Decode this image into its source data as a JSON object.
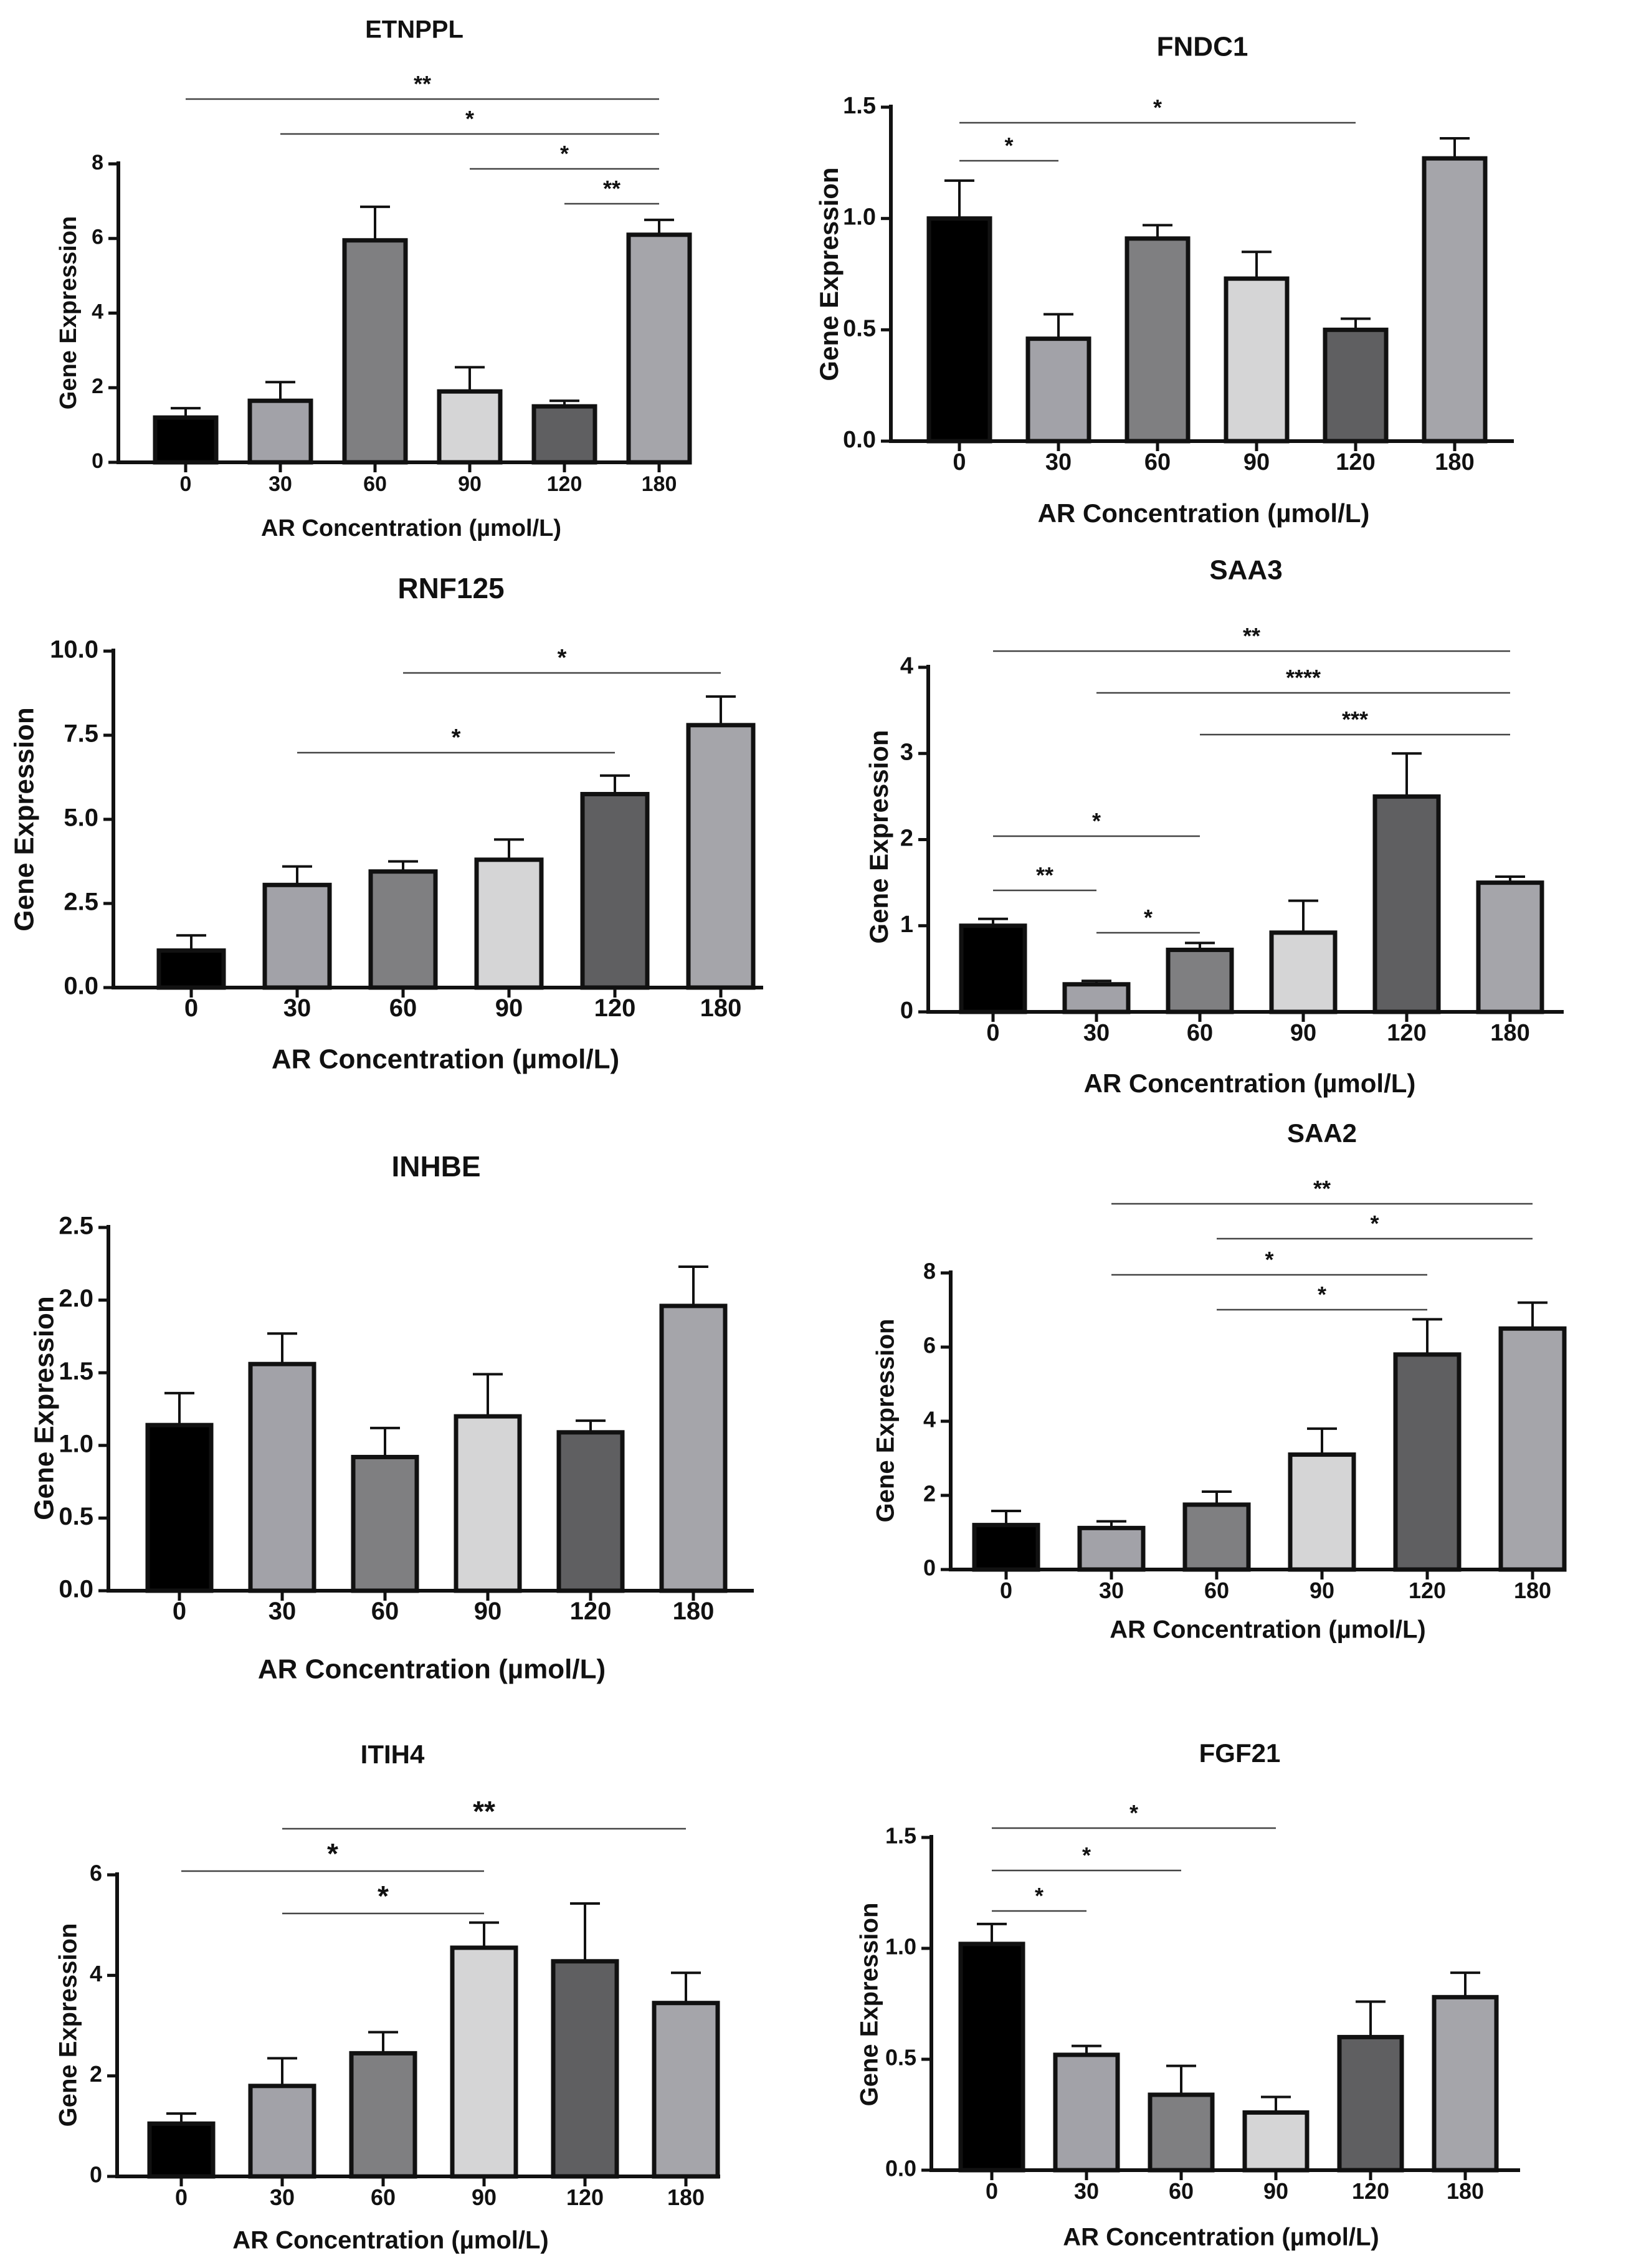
{
  "chart_data": [
    {
      "type": "bar",
      "title": "ETNPPL",
      "xlabel": "AR Concentration (µmol/L)",
      "ylabel": "Gene Expression",
      "categories": [
        "0",
        "30",
        "60",
        "90",
        "120",
        "180"
      ],
      "values": [
        1.2,
        1.65,
        5.95,
        1.9,
        1.5,
        6.1
      ],
      "errors": [
        0.25,
        0.5,
        0.9,
        0.65,
        0.15,
        0.4
      ],
      "ylim": [
        0,
        8
      ],
      "yticks": [
        "0",
        "2",
        "4",
        "6",
        "8"
      ],
      "ytick_values": [
        0,
        2,
        4,
        6,
        8
      ],
      "significance": [
        {
          "from": "0",
          "to": "180",
          "label": "**"
        },
        {
          "from": "30",
          "to": "180",
          "label": "*"
        },
        {
          "from": "90",
          "to": "180",
          "label": "*"
        },
        {
          "from": "120",
          "to": "180",
          "label": "**"
        }
      ]
    },
    {
      "type": "bar",
      "title": "FNDC1",
      "xlabel": "AR Concentration (µmol/L)",
      "ylabel": "Gene Expression",
      "categories": [
        "0",
        "30",
        "60",
        "90",
        "120",
        "180"
      ],
      "values": [
        1.0,
        0.46,
        0.91,
        0.73,
        0.5,
        1.27
      ],
      "errors": [
        0.17,
        0.11,
        0.06,
        0.12,
        0.05,
        0.09
      ],
      "ylim": [
        0,
        1.5
      ],
      "yticks": [
        "0.0",
        "0.5",
        "1.0",
        "1.5"
      ],
      "ytick_values": [
        0,
        0.5,
        1.0,
        1.5
      ],
      "significance": [
        {
          "from": "0",
          "to": "120",
          "label": "*"
        },
        {
          "from": "0",
          "to": "30",
          "label": "*"
        }
      ]
    },
    {
      "type": "bar",
      "title": "RNF125",
      "xlabel": "AR Concentration (µmol/L)",
      "ylabel": "Gene Expression",
      "categories": [
        "0",
        "30",
        "60",
        "90",
        "120",
        "180"
      ],
      "values": [
        1.1,
        3.05,
        3.45,
        3.8,
        5.75,
        7.8
      ],
      "errors": [
        0.45,
        0.55,
        0.3,
        0.6,
        0.55,
        0.85
      ],
      "ylim": [
        0,
        10
      ],
      "yticks": [
        "0.0",
        "2.5",
        "5.0",
        "7.5",
        "10.0"
      ],
      "ytick_values": [
        0,
        2.5,
        5,
        7.5,
        10
      ],
      "significance": [
        {
          "from": "60",
          "to": "180",
          "label": "*"
        },
        {
          "from": "30",
          "to": "120",
          "label": "*"
        }
      ]
    },
    {
      "type": "bar",
      "title": "SAA3",
      "xlabel": "AR Concentration (µmol/L)",
      "ylabel": "Gene Expression",
      "categories": [
        "0",
        "30",
        "60",
        "90",
        "120",
        "180"
      ],
      "values": [
        1.0,
        0.32,
        0.72,
        0.92,
        2.5,
        1.5
      ],
      "errors": [
        0.08,
        0.04,
        0.08,
        0.37,
        0.5,
        0.07
      ],
      "ylim": [
        0,
        4
      ],
      "yticks": [
        "0",
        "1",
        "2",
        "3",
        "4"
      ],
      "ytick_values": [
        0,
        1,
        2,
        3,
        4
      ],
      "significance": [
        {
          "from": "0",
          "to": "180",
          "label": "**"
        },
        {
          "from": "30",
          "to": "180",
          "label": "****"
        },
        {
          "from": "60",
          "to": "180",
          "label": "***"
        },
        {
          "from": "0",
          "to": "60",
          "label": "*"
        },
        {
          "from": "0",
          "to": "30",
          "label": "**"
        },
        {
          "from": "30",
          "to": "60",
          "label": "*"
        }
      ]
    },
    {
      "type": "bar",
      "title": "INHBE",
      "xlabel": "AR Concentration (µmol/L)",
      "ylabel": "Gene Expression",
      "categories": [
        "0",
        "30",
        "60",
        "90",
        "120",
        "180"
      ],
      "values": [
        1.14,
        1.56,
        0.92,
        1.2,
        1.09,
        1.96
      ],
      "errors": [
        0.22,
        0.21,
        0.2,
        0.29,
        0.08,
        0.27
      ],
      "ylim": [
        0,
        2.5
      ],
      "yticks": [
        "0.0",
        "0.5",
        "1.0",
        "1.5",
        "2.0",
        "2.5"
      ],
      "ytick_values": [
        0,
        0.5,
        1,
        1.5,
        2,
        2.5
      ],
      "significance": []
    },
    {
      "type": "bar",
      "title": "SAA2",
      "xlabel": "AR Concentration (µmol/L)",
      "ylabel": "Gene Expression",
      "categories": [
        "0",
        "30",
        "60",
        "90",
        "120",
        "180"
      ],
      "values": [
        1.2,
        1.12,
        1.75,
        3.1,
        5.8,
        6.5
      ],
      "errors": [
        0.38,
        0.18,
        0.35,
        0.7,
        0.95,
        0.7
      ],
      "ylim": [
        0,
        8
      ],
      "yticks": [
        "0",
        "2",
        "4",
        "6",
        "8"
      ],
      "ytick_values": [
        0,
        2,
        4,
        6,
        8
      ],
      "significance": [
        {
          "from": "30",
          "to": "180",
          "label": "**"
        },
        {
          "from": "60",
          "to": "180",
          "label": "*"
        },
        {
          "from": "30",
          "to": "120",
          "label": "*"
        },
        {
          "from": "60",
          "to": "120",
          "label": "*"
        }
      ]
    },
    {
      "type": "bar",
      "title": "ITIH4",
      "xlabel": "AR Concentration (µmol/L)",
      "ylabel": "Gene Expression",
      "categories": [
        "0",
        "30",
        "60",
        "90",
        "120",
        "180"
      ],
      "values": [
        1.05,
        1.8,
        2.45,
        4.55,
        4.28,
        3.45
      ],
      "errors": [
        0.2,
        0.55,
        0.42,
        0.5,
        1.15,
        0.6
      ],
      "ylim": [
        0,
        6
      ],
      "yticks": [
        "0",
        "2",
        "4",
        "6"
      ],
      "ytick_values": [
        0,
        2,
        4,
        6
      ],
      "significance": [
        {
          "from": "30",
          "to": "180",
          "label": "**"
        },
        {
          "from": "0",
          "to": "90",
          "label": "*"
        },
        {
          "from": "30",
          "to": "90",
          "label": "*"
        }
      ]
    },
    {
      "type": "bar",
      "title": "FGF21",
      "xlabel": "AR Concentration (µmol/L)",
      "ylabel": "Gene Expression",
      "categories": [
        "0",
        "30",
        "60",
        "90",
        "120",
        "180"
      ],
      "values": [
        1.02,
        0.52,
        0.34,
        0.26,
        0.6,
        0.78
      ],
      "errors": [
        0.09,
        0.04,
        0.13,
        0.07,
        0.16,
        0.11
      ],
      "ylim": [
        0,
        1.5
      ],
      "yticks": [
        "0.0",
        "0.5",
        "1.0",
        "1.5"
      ],
      "ytick_values": [
        0,
        0.5,
        1.0,
        1.5
      ],
      "significance": [
        {
          "from": "0",
          "to": "90",
          "label": "*"
        },
        {
          "from": "0",
          "to": "60",
          "label": "*"
        },
        {
          "from": "0",
          "to": "30",
          "label": "*"
        }
      ]
    }
  ],
  "colors": {
    "bars": [
      "#000000",
      "#a2a2a8",
      "#7f7f81",
      "#d5d5d6",
      "#5f5f61",
      "#a5a5aa"
    ],
    "ink": "#111111",
    "sigline": "#444444"
  }
}
